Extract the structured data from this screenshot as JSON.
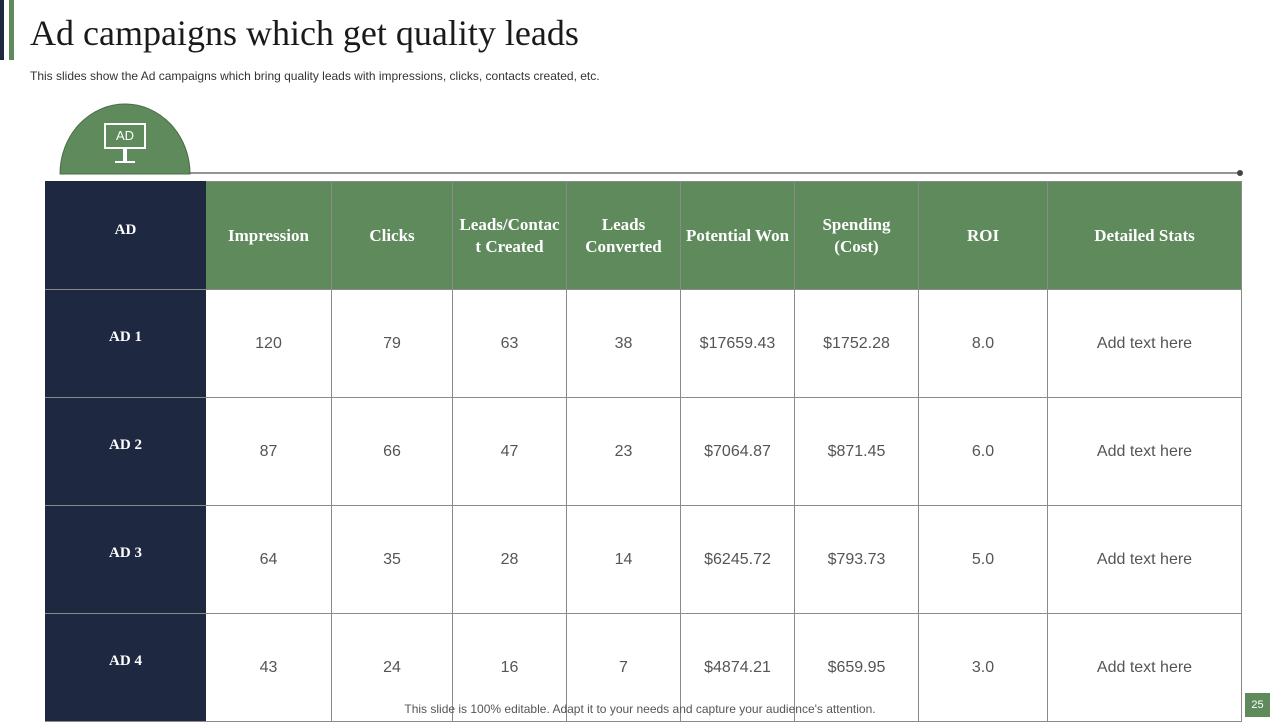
{
  "header": {
    "title": "Ad campaigns which get quality leads",
    "subtitle": "This slides show the Ad campaigns which bring quality leads with impressions, clicks, contacts created, etc."
  },
  "icon_label": "AD",
  "table": {
    "columns": [
      "AD",
      "Impression",
      "Clicks",
      "Leads/Contact Created",
      "Leads Converted",
      "Potential Won",
      "Spending (Cost)",
      "ROI",
      "Detailed Stats"
    ],
    "rows": [
      [
        "AD 1",
        "120",
        "79",
        "63",
        "38",
        "$17659.43",
        "$1752.28",
        "8.0",
        "Add text here"
      ],
      [
        "AD 2",
        "87",
        "66",
        "47",
        "23",
        "$7064.87",
        "$871.45",
        "6.0",
        "Add text here"
      ],
      [
        "AD 3",
        "64",
        "35",
        "28",
        "14",
        "$6245.72",
        "$793.73",
        "5.0",
        "Add text here"
      ],
      [
        "AD 4",
        "43",
        "24",
        "16",
        "7",
        "$4874.21",
        "$659.95",
        "3.0",
        "Add text here"
      ]
    ]
  },
  "footer": {
    "note": "This slide is 100% editable. Adapt it to your needs and capture your audience's attention.",
    "page": "25"
  }
}
